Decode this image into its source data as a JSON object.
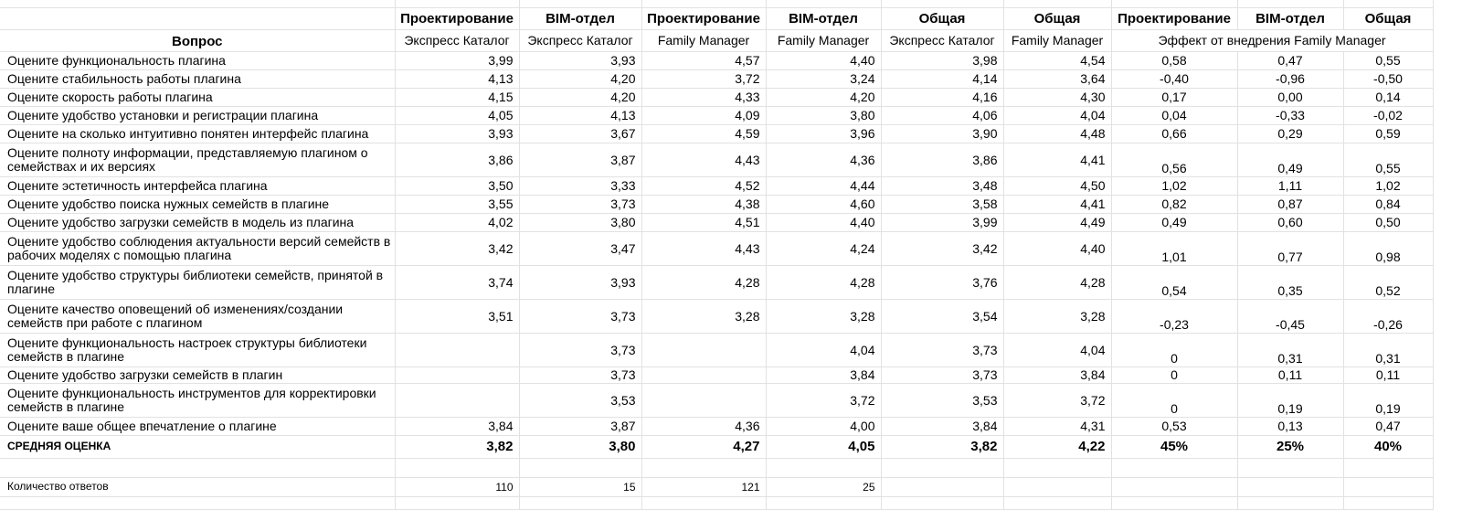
{
  "header": {
    "question_label": "Вопрос",
    "groups": [
      "Проектирование",
      "BIM-отдел",
      "Проектирование",
      "BIM-отдел",
      "Общая",
      "Общая",
      "Проектирование",
      "BIM-отдел",
      "Общая"
    ],
    "subgroups": [
      "Экспресс Каталог",
      "Экспресс Каталог",
      "Family Manager",
      "Family Manager",
      "Экспресс Каталог",
      "Family Manager"
    ],
    "effect_label": "Эффект от внедрения Family Manager"
  },
  "rows": [
    {
      "q": "Оцените функциональность плагина",
      "v": [
        "3,99",
        "3,93",
        "4,57",
        "4,40",
        "3,98",
        "4,54"
      ],
      "e": [
        "0,58",
        "0,47",
        "0,55"
      ]
    },
    {
      "q": "Оцените стабильность работы плагина",
      "v": [
        "4,13",
        "4,20",
        "3,72",
        "3,24",
        "4,14",
        "3,64"
      ],
      "e": [
        "-0,40",
        "-0,96",
        "-0,50"
      ]
    },
    {
      "q": "Оцените скорость работы плагина",
      "v": [
        "4,15",
        "4,20",
        "4,33",
        "4,20",
        "4,16",
        "4,30"
      ],
      "e": [
        "0,17",
        "0,00",
        "0,14"
      ]
    },
    {
      "q": "Оцените удобство установки и регистрации плагина",
      "v": [
        "4,05",
        "4,13",
        "4,09",
        "3,80",
        "4,06",
        "4,04"
      ],
      "e": [
        "0,04",
        "-0,33",
        "-0,02"
      ]
    },
    {
      "q": "Оцените на сколько интуитивно понятен интерфейс плагина",
      "v": [
        "3,93",
        "3,67",
        "4,59",
        "3,96",
        "3,90",
        "4,48"
      ],
      "e": [
        "0,66",
        "0,29",
        "0,59"
      ]
    },
    {
      "q": "Оцените полноту информации, представляемую плагином о семействах и их версиях",
      "v": [
        "3,86",
        "3,87",
        "4,43",
        "4,36",
        "3,86",
        "4,41"
      ],
      "e": [
        "0,56",
        "0,49",
        "0,55"
      ]
    },
    {
      "q": "Оцените эстетичность интерфейса плагина",
      "v": [
        "3,50",
        "3,33",
        "4,52",
        "4,44",
        "3,48",
        "4,50"
      ],
      "e": [
        "1,02",
        "1,11",
        "1,02"
      ]
    },
    {
      "q": "Оцените удобство поиска нужных семейств в плагине",
      "v": [
        "3,55",
        "3,73",
        "4,38",
        "4,60",
        "3,58",
        "4,41"
      ],
      "e": [
        "0,82",
        "0,87",
        "0,84"
      ]
    },
    {
      "q": "Оцените удобство загрузки семейств в модель из плагина",
      "v": [
        "4,02",
        "3,80",
        "4,51",
        "4,40",
        "3,99",
        "4,49"
      ],
      "e": [
        "0,49",
        "0,60",
        "0,50"
      ]
    },
    {
      "q": "Оцените удобство соблюдения актуальности версий семейств в рабочих моделях с помощью плагина",
      "v": [
        "3,42",
        "3,47",
        "4,43",
        "4,24",
        "3,42",
        "4,40"
      ],
      "e": [
        "1,01",
        "0,77",
        "0,98"
      ]
    },
    {
      "q": "Оцените удобство структуры библиотеки семейств, принятой в плагине",
      "v": [
        "3,74",
        "3,93",
        "4,28",
        "4,28",
        "3,76",
        "4,28"
      ],
      "e": [
        "0,54",
        "0,35",
        "0,52"
      ]
    },
    {
      "q": "Оцените качество оповещений об изменениях/создании семейств при работе с плагином",
      "v": [
        "3,51",
        "3,73",
        "3,28",
        "3,28",
        "3,54",
        "3,28"
      ],
      "e": [
        "-0,23",
        "-0,45",
        "-0,26"
      ]
    },
    {
      "q": "Оцените функциональность настроек структуры библиотеки семейств в плагине",
      "v": [
        "",
        "3,73",
        "",
        "4,04",
        "3,73",
        "4,04"
      ],
      "e": [
        "0",
        "0,31",
        "0,31"
      ]
    },
    {
      "q": "Оцените удобство загрузки семейств в плагин",
      "v": [
        "",
        "3,73",
        "",
        "3,84",
        "3,73",
        "3,84"
      ],
      "e": [
        "0",
        "0,11",
        "0,11"
      ]
    },
    {
      "q": "Оцените функциональность инструментов для корректировки семейств в плагине",
      "v": [
        "",
        "3,53",
        "",
        "3,72",
        "3,53",
        "3,72"
      ],
      "e": [
        "0",
        "0,19",
        "0,19"
      ]
    },
    {
      "q": "Оцените ваше общее впечатление о плагине",
      "v": [
        "3,84",
        "3,87",
        "4,36",
        "4,00",
        "3,84",
        "4,31"
      ],
      "e": [
        "0,53",
        "0,13",
        "0,47"
      ]
    }
  ],
  "mean": {
    "label": "СРЕДНЯЯ ОЦЕНКА",
    "v": [
      "3,82",
      "3,80",
      "4,27",
      "4,05",
      "3,82",
      "4,22"
    ],
    "e": [
      "45%",
      "25%",
      "40%"
    ]
  },
  "count": {
    "label": "Количество ответов",
    "v": [
      "110",
      "15",
      "121",
      "25"
    ]
  }
}
